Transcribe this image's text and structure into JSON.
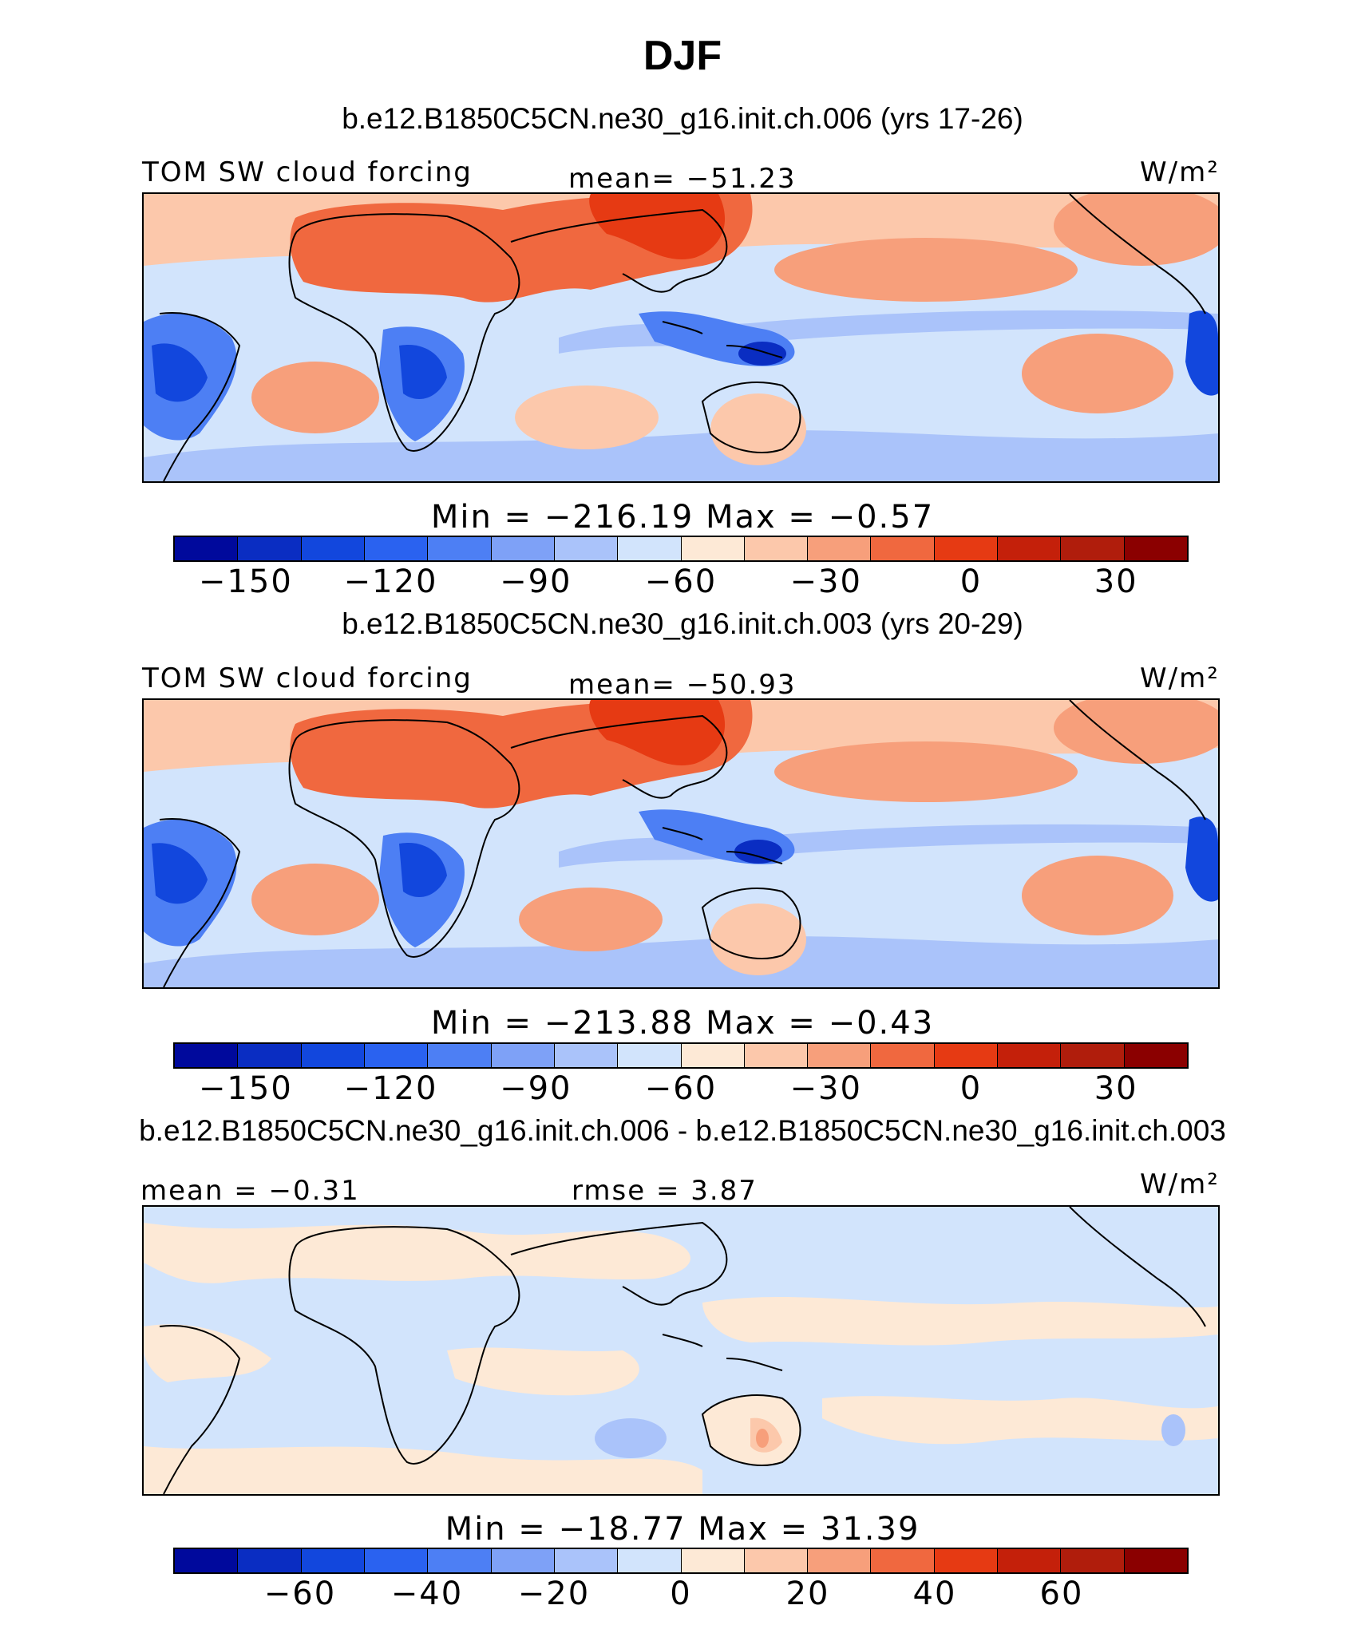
{
  "figure": {
    "title": "DJF",
    "units": "W/m²"
  },
  "colormap": {
    "anomaly": [
      "#00099c",
      "#0a2dc2",
      "#1247dd",
      "#2a62f0",
      "#4d7ff4",
      "#7ea1f7",
      "#aac3fa",
      "#d2e4fc",
      "#fde9d6",
      "#fcc8ab",
      "#f79f7b",
      "#f0683f",
      "#e63a13",
      "#c4200a",
      "#b01d0c",
      "#8b0000"
    ]
  },
  "chart_data": [
    {
      "type": "heatmap",
      "title": "b.e12.B1850C5CN.ne30_g16.init.ch.006 (yrs 17-26)",
      "variable": "TOM SW cloud forcing",
      "units": "W/m²",
      "mean_label": "mean= −51.23",
      "minmax_label": "Min = −216.19 Max = −0.57",
      "stats": {
        "mean": -51.23,
        "min": -216.19,
        "max": -0.57
      },
      "colorbar": {
        "levels": [
          -170,
          -160,
          -150,
          -140,
          -130,
          -120,
          -110,
          -100,
          -90,
          -80,
          -70,
          -60,
          -50,
          -40,
          -30,
          -20,
          -10,
          0,
          10,
          20,
          30,
          40,
          50
        ],
        "tick_values": [
          -150,
          -120,
          -90,
          -60,
          -30,
          0,
          30
        ],
        "tick_labels": [
          "−150",
          "−120",
          "−90",
          "−60",
          "−30",
          "0",
          "30"
        ],
        "range": [
          -165,
          45
        ]
      }
    },
    {
      "type": "heatmap",
      "title": "b.e12.B1850C5CN.ne30_g16.init.ch.003 (yrs 20-29)",
      "variable": "TOM SW cloud forcing",
      "units": "W/m²",
      "mean_label": "mean= −50.93",
      "minmax_label": "Min = −213.88 Max = −0.43",
      "stats": {
        "mean": -50.93,
        "min": -213.88,
        "max": -0.43
      },
      "colorbar": {
        "tick_values": [
          -150,
          -120,
          -90,
          -60,
          -30,
          0,
          30
        ],
        "tick_labels": [
          "−150",
          "−120",
          "−90",
          "−60",
          "−30",
          "0",
          "30"
        ],
        "range": [
          -165,
          45
        ]
      }
    },
    {
      "type": "heatmap",
      "title": "b.e12.B1850C5CN.ne30_g16.init.ch.006 - b.e12.B1850C5CN.ne30_g16.init.ch.003",
      "units": "W/m²",
      "mean_label": "mean = −0.31",
      "rmse_label": "rmse = 3.87",
      "minmax_label": "Min = −18.77 Max = 31.39",
      "stats": {
        "mean": -0.31,
        "rmse": 3.87,
        "min": -18.77,
        "max": 31.39
      },
      "colorbar": {
        "tick_values": [
          -60,
          -40,
          -20,
          0,
          20,
          40,
          60
        ],
        "tick_labels": [
          "−60",
          "−40",
          "−20",
          "0",
          "20",
          "40",
          "60"
        ],
        "range": [
          -80,
          80
        ]
      }
    }
  ]
}
